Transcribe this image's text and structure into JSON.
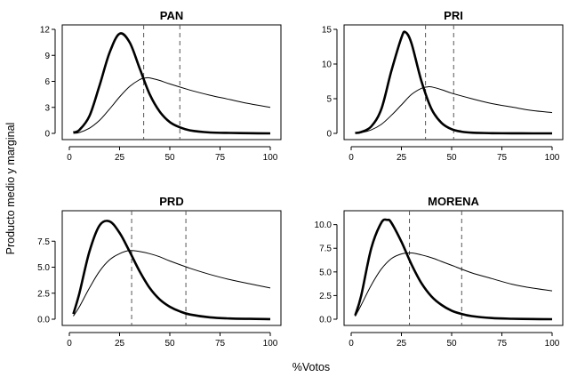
{
  "chart_data": {
    "type": "line",
    "xlabel": "%Votos",
    "ylabel": "Producto medio y marginal",
    "panels": [
      {
        "title": "PAN",
        "xlim": [
          0,
          100
        ],
        "ylim": [
          0,
          12
        ],
        "xticks": [
          "0",
          "25",
          "50",
          "75",
          "100"
        ],
        "yticks": [
          "0",
          "3",
          "6",
          "9",
          "12"
        ],
        "ytick_values": [
          0,
          3,
          6,
          9,
          12
        ],
        "vlines": [
          37,
          55
        ],
        "series": [
          {
            "style": "thick",
            "x": [
              2,
              5,
              10,
              15,
              20,
              25,
              30,
              35,
              40,
              45,
              50,
              55,
              60,
              70,
              80,
              90,
              100
            ],
            "values": [
              0.1,
              0.4,
              2.0,
              5.5,
              9.3,
              11.5,
              10.5,
              7.5,
              4.5,
              2.5,
              1.3,
              0.7,
              0.35,
              0.1,
              0.05,
              0.02,
              0.0
            ]
          },
          {
            "style": "thin",
            "x": [
              2,
              5,
              10,
              15,
              20,
              25,
              30,
              35,
              38,
              40,
              45,
              50,
              60,
              70,
              80,
              90,
              100
            ],
            "values": [
              0.0,
              0.1,
              0.6,
              1.5,
              2.8,
              4.2,
              5.4,
              6.2,
              6.4,
              6.4,
              6.1,
              5.7,
              5.0,
              4.4,
              3.9,
              3.4,
              3.0
            ]
          }
        ]
      },
      {
        "title": "PRI",
        "xlim": [
          0,
          100
        ],
        "ylim": [
          0,
          15
        ],
        "xticks": [
          "0",
          "25",
          "50",
          "75",
          "100"
        ],
        "yticks": [
          "0",
          "5",
          "10",
          "15"
        ],
        "ytick_values": [
          0,
          5,
          10,
          15
        ],
        "vlines": [
          37,
          51
        ],
        "series": [
          {
            "style": "thick",
            "x": [
              2,
              5,
              10,
              15,
              20,
              25,
              27,
              30,
              35,
              40,
              45,
              50,
              55,
              60,
              70,
              80,
              90,
              100
            ],
            "values": [
              0.05,
              0.2,
              1.0,
              3.5,
              9.0,
              13.8,
              14.6,
              13.0,
              7.5,
              3.5,
              1.5,
              0.6,
              0.25,
              0.1,
              0.03,
              0.01,
              0.0,
              0.0
            ]
          },
          {
            "style": "thin",
            "x": [
              2,
              5,
              10,
              15,
              20,
              25,
              30,
              35,
              38,
              40,
              45,
              50,
              60,
              70,
              80,
              90,
              100
            ],
            "values": [
              0.0,
              0.1,
              0.5,
              1.3,
              2.6,
              4.1,
              5.6,
              6.5,
              6.7,
              6.7,
              6.3,
              5.8,
              5.0,
              4.3,
              3.8,
              3.3,
              3.0
            ]
          }
        ]
      },
      {
        "title": "PRD",
        "xlim": [
          0,
          100
        ],
        "ylim": [
          0,
          10
        ],
        "xticks": [
          "0",
          "25",
          "50",
          "75",
          "100"
        ],
        "yticks": [
          "0.0",
          "2.5",
          "5.0",
          "7.5"
        ],
        "ytick_values": [
          0,
          2.5,
          5,
          7.5
        ],
        "vlines": [
          31,
          58
        ],
        "series": [
          {
            "style": "thick",
            "x": [
              2,
              5,
              10,
              15,
              20,
              25,
              30,
              35,
              40,
              45,
              50,
              55,
              60,
              70,
              80,
              90,
              100
            ],
            "values": [
              0.5,
              2.5,
              6.5,
              9.0,
              9.4,
              8.3,
              6.5,
              4.6,
              3.0,
              1.9,
              1.2,
              0.75,
              0.45,
              0.18,
              0.07,
              0.03,
              0.01
            ]
          },
          {
            "style": "thin",
            "x": [
              2,
              5,
              10,
              15,
              20,
              25,
              30,
              35,
              40,
              45,
              50,
              60,
              70,
              80,
              90,
              100
            ],
            "values": [
              0.3,
              1.2,
              3.0,
              4.6,
              5.7,
              6.3,
              6.6,
              6.5,
              6.3,
              6.0,
              5.6,
              4.9,
              4.3,
              3.8,
              3.4,
              3.0
            ]
          }
        ]
      },
      {
        "title": "MORENA",
        "xlim": [
          0,
          100
        ],
        "ylim": [
          0,
          11
        ],
        "xticks": [
          "0",
          "25",
          "50",
          "75",
          "100"
        ],
        "yticks": [
          "0.0",
          "2.5",
          "5.0",
          "7.5",
          "10.0"
        ],
        "ytick_values": [
          0,
          2.5,
          5,
          7.5,
          10
        ],
        "vlines": [
          29,
          55
        ],
        "series": [
          {
            "style": "thick",
            "x": [
              2,
              5,
              10,
              15,
              18,
              20,
              25,
              30,
              35,
              40,
              45,
              50,
              55,
              60,
              70,
              80,
              90,
              100
            ],
            "values": [
              0.4,
              2.5,
              7.5,
              10.2,
              10.5,
              10.2,
              8.2,
              5.8,
              3.8,
              2.4,
              1.5,
              0.9,
              0.55,
              0.33,
              0.12,
              0.05,
              0.02,
              0.0
            ]
          },
          {
            "style": "thin",
            "x": [
              2,
              5,
              10,
              15,
              20,
              25,
              30,
              35,
              40,
              45,
              50,
              60,
              70,
              80,
              90,
              100
            ],
            "values": [
              0.3,
              1.5,
              3.6,
              5.3,
              6.4,
              6.9,
              7.0,
              6.8,
              6.5,
              6.1,
              5.7,
              4.9,
              4.3,
              3.7,
              3.3,
              3.0
            ]
          }
        ]
      }
    ]
  }
}
